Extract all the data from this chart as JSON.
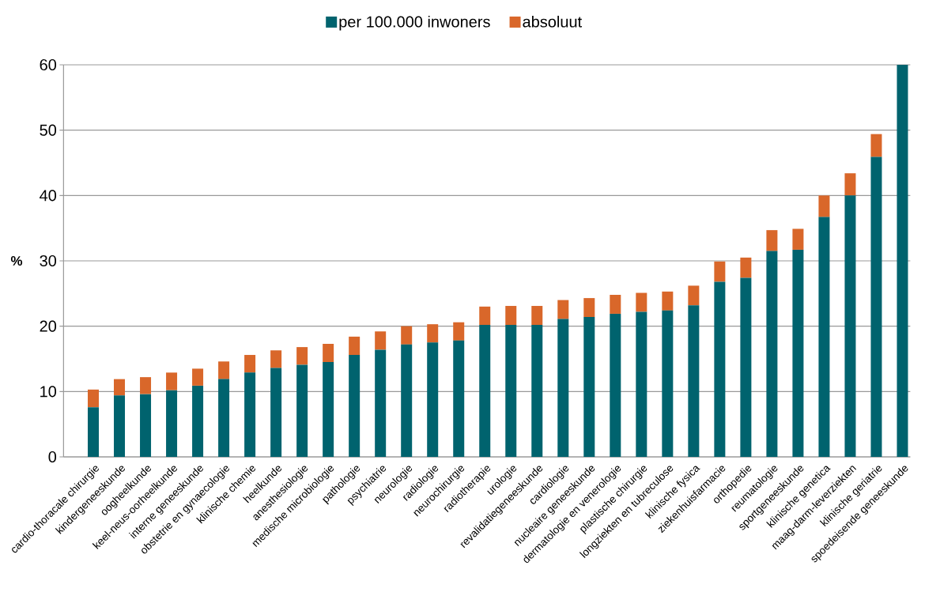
{
  "chart_data": {
    "type": "bar",
    "stacked": true,
    "ylabel": "%",
    "categories": [
      "cardio-thoracale chirurgie",
      "kindergeneeskunde",
      "oogheelkunde",
      "keel-neus-oorheelkunde",
      "interne geneeskunde",
      "obstetrie en gynaecologie",
      "klinische chemie",
      "heelkunde",
      "anesthesiologie",
      "medische microbiologie",
      "pathologie",
      "psychiatrie",
      "neurologie",
      "radiologie",
      "neurochirurgie",
      "radiotherapie",
      "urologie",
      "revalidatiegeneeskunde",
      "cardiologie",
      "nucleaire geneeskunde",
      "dermatologie en venerologie",
      "plastische chirurgie",
      "longziekten en tubreculose",
      "klinische fysica",
      "ziekenhuisfarmacie",
      "orthopedie",
      "reumatologie",
      "sportgeneeskunde",
      "klinische genetica",
      "maag-darm-leverziekten",
      "klinische geriatrie",
      "spoedeisende geneeskunde"
    ],
    "series": [
      {
        "name": "per 100.000 inwoners",
        "color": "#00636e",
        "values": [
          7.6,
          9.4,
          9.6,
          10.2,
          10.9,
          11.9,
          12.9,
          13.6,
          14.1,
          14.5,
          15.6,
          16.4,
          17.2,
          17.5,
          17.8,
          20.2,
          20.2,
          20.2,
          21.1,
          21.4,
          21.9,
          22.2,
          22.4,
          23.2,
          26.8,
          27.4,
          31.5,
          31.7,
          36.7,
          40.0,
          45.9,
          60
        ]
      },
      {
        "name": "absoluut",
        "color": "#d9672a",
        "values": [
          2.7,
          2.5,
          2.6,
          2.7,
          2.6,
          2.7,
          2.7,
          2.7,
          2.7,
          2.8,
          2.8,
          2.8,
          2.8,
          2.8,
          2.8,
          2.8,
          2.9,
          2.9,
          2.9,
          2.9,
          2.9,
          2.9,
          2.9,
          3.0,
          3.1,
          3.1,
          3.2,
          3.2,
          3.3,
          3.4,
          3.5,
          null
        ]
      }
    ],
    "ylim": [
      0,
      60
    ],
    "yticks": [
      0,
      10,
      20,
      30,
      40,
      50,
      60
    ],
    "grid": "y",
    "legend": "top"
  }
}
